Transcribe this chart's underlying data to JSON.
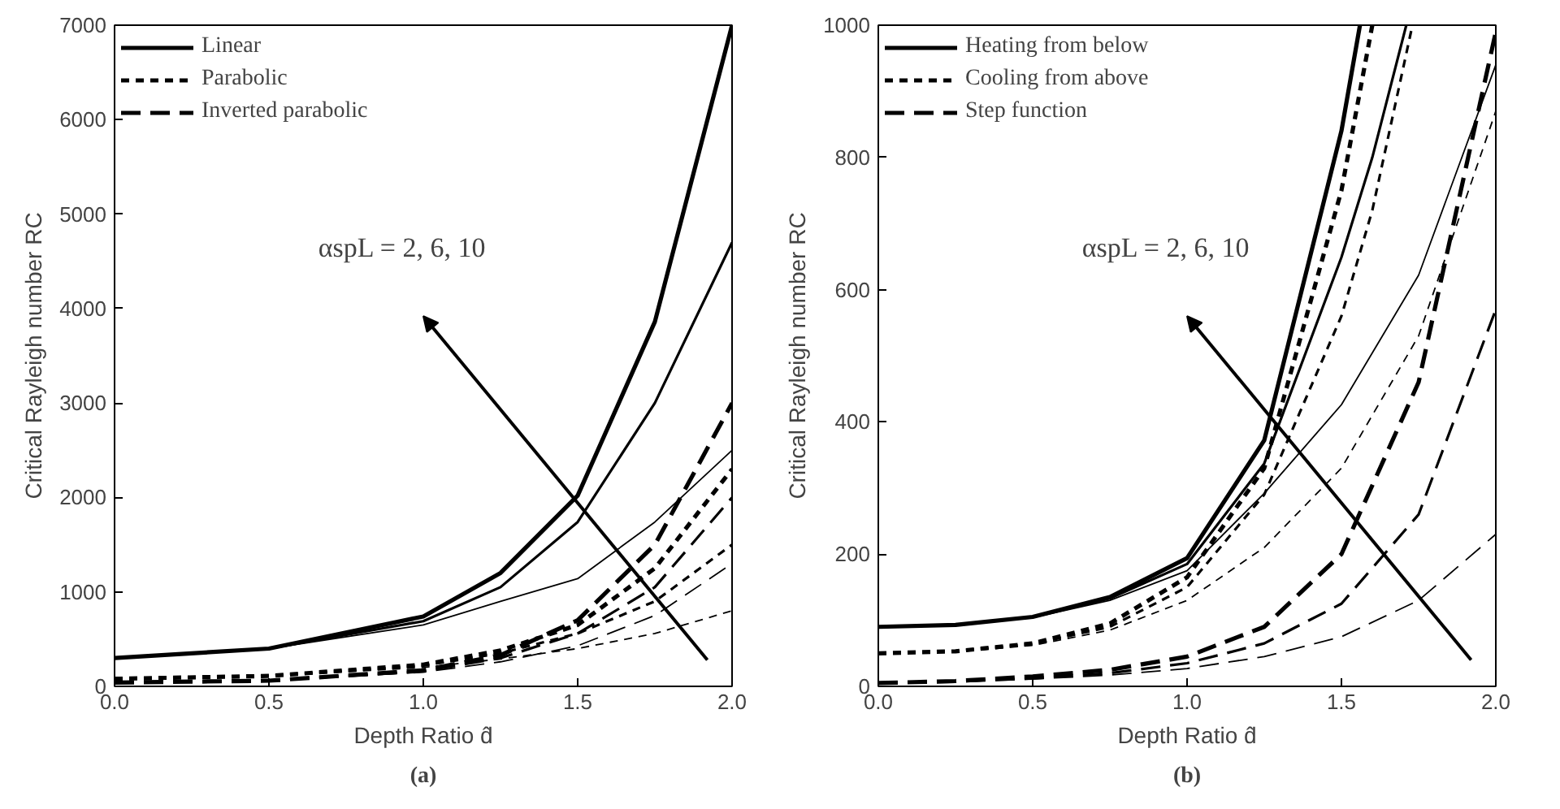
{
  "chart_data": [
    {
      "type": "line",
      "title": "(a)",
      "xlabel": "Depth Ratio d̂",
      "ylabel": "Critical Rayleigh number RC",
      "annotations": [
        "αspL = 2, 6, 10"
      ],
      "xlim": [
        0,
        2
      ],
      "ylim": [
        0,
        7000
      ],
      "xticks": [
        {
          "value": 0,
          "label": "0.0"
        },
        {
          "value": 0.5,
          "label": "0.5"
        },
        {
          "value": 1,
          "label": "1.0"
        },
        {
          "value": 1.5,
          "label": "1.5"
        },
        {
          "value": 2,
          "label": "2.0"
        }
      ],
      "yticks": [
        0,
        1000,
        2000,
        3000,
        4000,
        5000,
        6000,
        7000
      ],
      "grid": false,
      "legend": "top left",
      "marker": "none",
      "series": [
        {
          "name": "Linear",
          "color": "#000000",
          "line_style": "solid",
          "x": [
            0,
            0.5,
            1,
            1.25,
            1.5,
            1.75,
            2
          ],
          "values": [
            300,
            400,
            740,
            1200,
            2020,
            3860,
            7000
          ]
        },
        {
          "color": "#000000",
          "line_style": "solid",
          "x": [
            0,
            0.5,
            1,
            1.25,
            1.5,
            1.75,
            2
          ],
          "values": [
            300,
            400,
            690,
            1050,
            1740,
            3000,
            4700
          ]
        },
        {
          "color": "#000000",
          "line_style": "solid",
          "x": [
            0,
            0.5,
            1,
            1.25,
            1.5,
            1.75,
            2
          ],
          "values": [
            300,
            400,
            650,
            900,
            1140,
            1740,
            2500
          ]
        },
        {
          "name": "Parabolic",
          "color": "#000000",
          "line_style": "dotted",
          "x": [
            0,
            0.5,
            1,
            1.25,
            1.5,
            1.75,
            2
          ],
          "values": [
            80,
            110,
            230,
            380,
            650,
            1250,
            2300
          ]
        },
        {
          "color": "#000000",
          "line_style": "dotted",
          "x": [
            0,
            0.5,
            1,
            1.25,
            1.5,
            1.75,
            2
          ],
          "values": [
            80,
            110,
            220,
            350,
            560,
            900,
            1500
          ]
        },
        {
          "color": "#000000",
          "line_style": "dotted",
          "x": [
            0,
            0.5,
            1,
            1.25,
            1.5,
            1.75,
            2
          ],
          "values": [
            80,
            110,
            200,
            290,
            400,
            560,
            800
          ]
        },
        {
          "name": "Inverted parabolic",
          "color": "#000000",
          "line_style": "dashed",
          "x": [
            0,
            0.5,
            1,
            1.25,
            1.5,
            1.75,
            2
          ],
          "values": [
            40,
            60,
            170,
            330,
            700,
            1500,
            3000
          ]
        },
        {
          "color": "#000000",
          "line_style": "dashed",
          "x": [
            0,
            0.5,
            1,
            1.25,
            1.5,
            1.75,
            2
          ],
          "values": [
            40,
            60,
            160,
            300,
            560,
            1050,
            2000
          ]
        },
        {
          "color": "#000000",
          "line_style": "dashed",
          "x": [
            0,
            0.5,
            1,
            1.25,
            1.5,
            1.75,
            2
          ],
          "values": [
            40,
            60,
            150,
            260,
            430,
            750,
            1300
          ]
        }
      ]
    },
    {
      "type": "line",
      "title": "(b)",
      "xlabel": "Depth Ratio d̂",
      "ylabel": "Critical Rayleigh number RC",
      "annotations": [
        "αspL = 2, 6, 10"
      ],
      "xlim": [
        0,
        2
      ],
      "ylim": [
        0,
        1000
      ],
      "xticks": [
        {
          "value": 0,
          "label": "0.0"
        },
        {
          "value": 0.5,
          "label": "0.5"
        },
        {
          "value": 1,
          "label": "1.0"
        },
        {
          "value": 1.5,
          "label": "1.5"
        },
        {
          "value": 2,
          "label": "2.0"
        }
      ],
      "yticks": [
        0,
        200,
        400,
        600,
        800,
        1000
      ],
      "grid": false,
      "legend": "top left",
      "marker": "none",
      "series": [
        {
          "name": "Heating from below",
          "color": "#000000",
          "line_style": "solid",
          "x": [
            0,
            0.25,
            0.5,
            0.75,
            1,
            1.25,
            1.5,
            1.56
          ],
          "values": [
            90,
            93,
            105,
            135,
            194,
            372,
            840,
            1000
          ]
        },
        {
          "color": "#000000",
          "line_style": "solid",
          "x": [
            0,
            0.25,
            0.5,
            0.75,
            1,
            1.25,
            1.5,
            1.6,
            1.71
          ],
          "values": [
            90,
            93,
            105,
            133,
            185,
            337,
            649,
            800,
            1000
          ]
        },
        {
          "color": "#000000",
          "line_style": "solid",
          "x": [
            0,
            0.25,
            0.5,
            0.75,
            1,
            1.25,
            1.5,
            1.75,
            2
          ],
          "values": [
            90,
            93,
            104,
            130,
            175,
            292,
            426,
            622,
            940
          ]
        },
        {
          "name": "Cooling from above",
          "color": "#000000",
          "line_style": "dotted",
          "x": [
            0,
            0.25,
            0.5,
            0.75,
            1,
            1.25,
            1.5,
            1.6
          ],
          "values": [
            50,
            53,
            65,
            95,
            165,
            330,
            750,
            1000
          ]
        },
        {
          "color": "#000000",
          "line_style": "dotted",
          "x": [
            0,
            0.25,
            0.5,
            0.75,
            1,
            1.25,
            1.5,
            1.6,
            1.73
          ],
          "values": [
            50,
            53,
            64,
            90,
            150,
            290,
            560,
            720,
            1000
          ]
        },
        {
          "color": "#000000",
          "line_style": "dotted",
          "x": [
            0,
            0.25,
            0.5,
            0.75,
            1,
            1.25,
            1.5,
            1.75,
            2
          ],
          "values": [
            50,
            52,
            62,
            85,
            130,
            210,
            330,
            530,
            870
          ]
        },
        {
          "name": "Step function",
          "color": "#000000",
          "line_style": "dashed",
          "x": [
            0,
            0.25,
            0.5,
            0.75,
            1,
            1.25,
            1.5,
            1.75,
            2
          ],
          "values": [
            5,
            8,
            15,
            25,
            45,
            90,
            200,
            460,
            990
          ]
        },
        {
          "color": "#000000",
          "line_style": "dashed",
          "x": [
            0,
            0.25,
            0.5,
            0.75,
            1,
            1.25,
            1.5,
            1.75,
            2
          ],
          "values": [
            5,
            7,
            12,
            20,
            35,
            65,
            125,
            260,
            570
          ]
        },
        {
          "color": "#000000",
          "line_style": "dashed",
          "x": [
            0,
            0.25,
            0.5,
            0.75,
            1,
            1.25,
            1.5,
            1.75,
            2
          ],
          "values": [
            5,
            7,
            11,
            17,
            27,
            45,
            75,
            130,
            230
          ]
        }
      ]
    }
  ]
}
